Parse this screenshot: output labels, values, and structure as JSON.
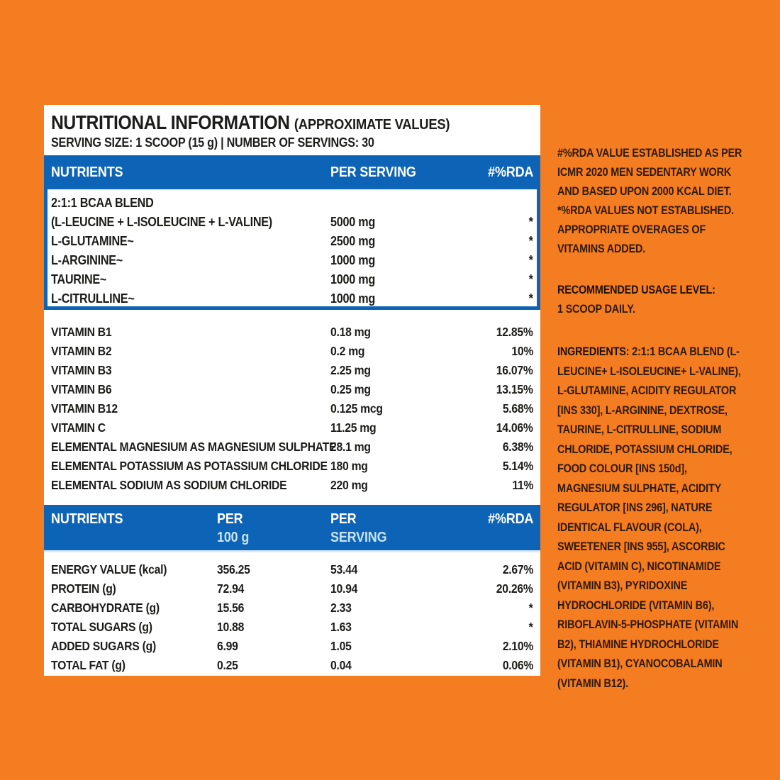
{
  "colors": {
    "background_orange": "#F57D21",
    "panel_white": "#FFFFFF",
    "accent_blue": "#0D63B5",
    "header_subtext_blue": "#C8E3F6",
    "panel_text": "#1C1C1A",
    "side_text": "#2F1A08"
  },
  "panel": {
    "title": "NUTRITIONAL INFORMATION",
    "title_suffix": "(APPROXIMATE VALUES)",
    "serving_line": "SERVING SIZE: 1 SCOOP (15 g) | NUMBER OF SERVINGS: 30",
    "table1": {
      "header": {
        "nutrients": "NUTRIENTS",
        "per_serving": "PER SERVING",
        "rda": "#%RDA"
      },
      "blend_title": "2:1:1 BCAA BLEND",
      "blend_rows": [
        {
          "name": "(L-LEUCINE + L-ISOLEUCINE + L-VALINE)",
          "per_serving": "5000 mg",
          "rda": "*"
        },
        {
          "name": "L-GLUTAMINE~",
          "per_serving": "2500 mg",
          "rda": "*"
        },
        {
          "name": "L-ARGININE~",
          "per_serving": "1000 mg",
          "rda": "*"
        },
        {
          "name": "TAURINE~",
          "per_serving": "1000 mg",
          "rda": "*"
        },
        {
          "name": "L-CITRULLINE~",
          "per_serving": "1000 mg",
          "rda": "*"
        }
      ],
      "vitamin_rows": [
        {
          "name": "VITAMIN B1",
          "per_serving": "0.18 mg",
          "rda": "12.85%"
        },
        {
          "name": "VITAMIN B2",
          "per_serving": "0.2 mg",
          "rda": "10%"
        },
        {
          "name": "VITAMIN B3",
          "per_serving": "2.25 mg",
          "rda": "16.07%"
        },
        {
          "name": "VITAMIN B6",
          "per_serving": "0.25 mg",
          "rda": "13.15%"
        },
        {
          "name": "VITAMIN B12",
          "per_serving": "0.125 mcg",
          "rda": "5.68%"
        },
        {
          "name": "VITAMIN C",
          "per_serving": "11.25 mg",
          "rda": "14.06%"
        },
        {
          "name": "ELEMENTAL MAGNESIUM AS MAGNESIUM SULPHATE",
          "per_serving": "28.1 mg",
          "rda": "6.38%"
        },
        {
          "name": "ELEMENTAL POTASSIUM AS POTASSIUM CHLORIDE",
          "per_serving": "180 mg",
          "rda": "5.14%"
        },
        {
          "name": "ELEMENTAL SODIUM AS SODIUM CHLORIDE",
          "per_serving": "220 mg",
          "rda": "11%"
        }
      ]
    },
    "table2": {
      "header": {
        "nutrients": "NUTRIENTS",
        "per_100g_line1": "PER",
        "per_100g_line2": "100 g",
        "per_serving_line1": "PER",
        "per_serving_line2": "SERVING",
        "rda": "#%RDA"
      },
      "rows": [
        {
          "name": "ENERGY VALUE (kcal)",
          "per_100g": "356.25",
          "per_serving": "53.44",
          "rda": "2.67%"
        },
        {
          "name": "PROTEIN (g)",
          "per_100g": "72.94",
          "per_serving": "10.94",
          "rda": "20.26%"
        },
        {
          "name": "CARBOHYDRATE (g)",
          "per_100g": "15.56",
          "per_serving": "2.33",
          "rda": "*"
        },
        {
          "name": "TOTAL SUGARS (g)",
          "per_100g": "10.88",
          "per_serving": "1.63",
          "rda": "*"
        },
        {
          "name": "ADDED SUGARS (g)",
          "per_100g": "6.99",
          "per_serving": "1.05",
          "rda": "2.10%"
        },
        {
          "name": "TOTAL FAT (g)",
          "per_100g": "0.25",
          "per_serving": "0.04",
          "rda": "0.06%"
        }
      ]
    }
  },
  "side": {
    "rda_note_1": "#%RDA VALUE ESTABLISHED AS PER ICMR 2020 MEN SEDENTARY WORK AND BASED UPON 2000 KCAL DIET. *%RDA VALUES NOT ESTABLISHED.",
    "rda_note_2": "APPROPRIATE OVERAGES OF VITAMINS ADDED.",
    "usage_heading": "RECOMMENDED USAGE LEVEL:",
    "usage_text": "1 SCOOP DAILY.",
    "ingredients_label": "INGREDIENTS:",
    "ingredients_text": "2:1:1 BCAA BLEND (L-LEUCINE+ L-ISOLEUCINE+ L-VALINE), L-GLUTAMINE, ACIDITY REGULATOR [INS 330], L-ARGININE, DEXTROSE, TAURINE, L-CITRULLINE, SODIUM CHLORIDE, POTASSIUM CHLORIDE, FOOD COLOUR [INS 150d], MAGNESIUM SULPHATE, ACIDITY REGULATOR [INS 296], NATURE IDENTICAL FLAVOUR (COLA), SWEETENER [INS 955], ASCORBIC ACID (VITAMIN C), NICOTINAMIDE (VITAMIN B3), PYRIDOXINE HYDROCHLORIDE (VITAMIN B6), RIBOFLAVIN-5-PHOSPHATE (VITAMIN B2), THIAMINE HYDROCHLORIDE (VITAMIN B1), CYANOCOBALAMIN (VITAMIN B12)."
  }
}
